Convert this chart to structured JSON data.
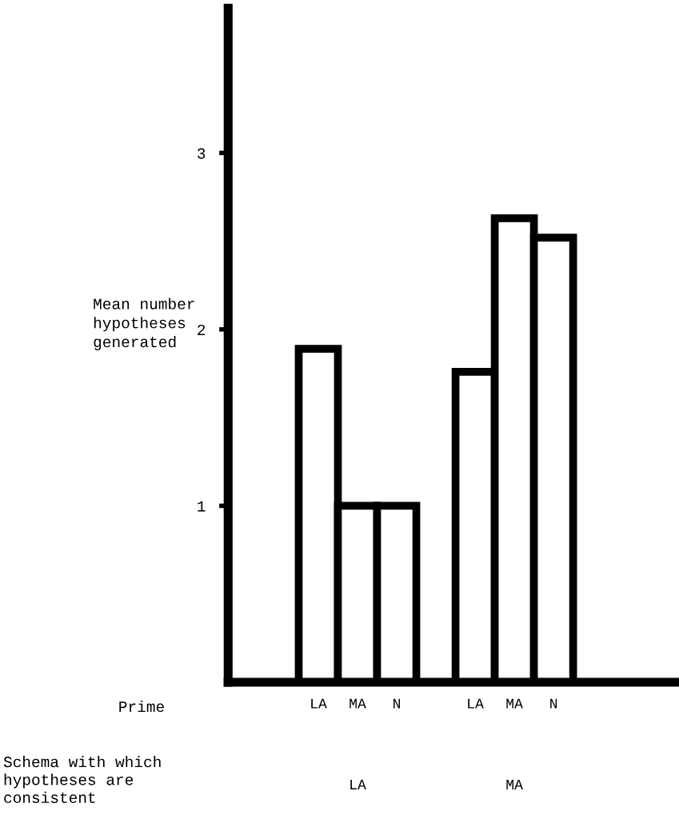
{
  "chart_data": {
    "type": "bar",
    "ylabel": "Mean number\nhypotheses\ngenerated",
    "categories": [
      "LA",
      "MA",
      "N",
      null,
      "LA",
      "MA",
      "N"
    ],
    "series": [
      {
        "color": "#ffffff",
        "values": [
          1.89,
          1.0,
          1.0,
          null,
          1.76,
          2.63,
          2.52
        ]
      }
    ],
    "ylim": [
      0,
      3.82
    ],
    "yticks": [
      1,
      2,
      3
    ],
    "grid": false,
    "annotations": [
      "Prime",
      "LA",
      "MA",
      "Schema with which\nhypotheses are\nconsistent"
    ]
  }
}
